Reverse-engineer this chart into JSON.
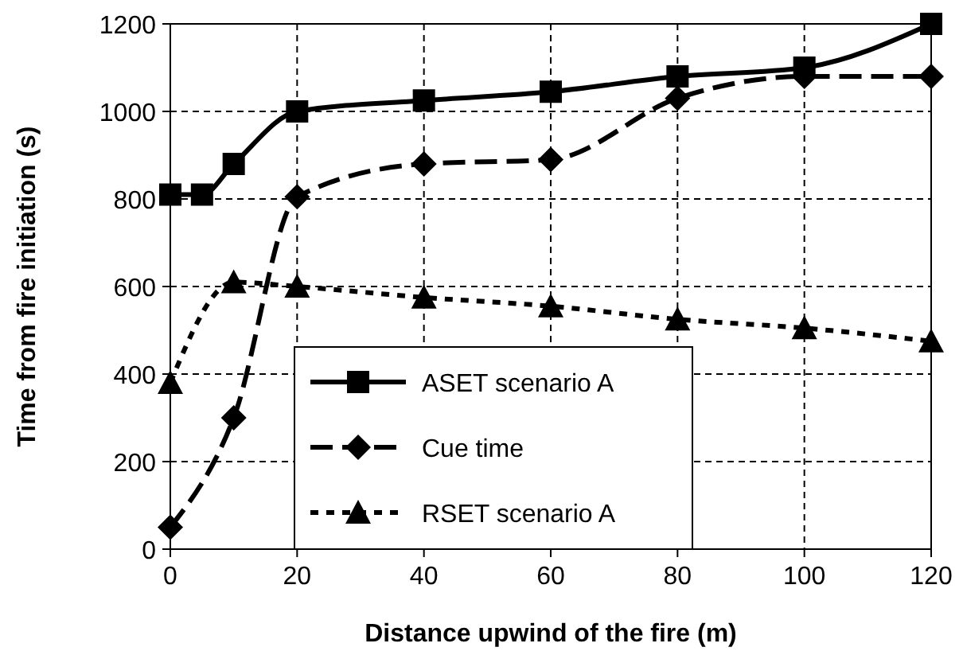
{
  "chart_data": {
    "type": "line",
    "xlabel": "Distance upwind of the fire (m)",
    "ylabel": "Time from fire initiation (s)",
    "xlim": [
      0,
      120
    ],
    "xticks": [
      0,
      20,
      40,
      60,
      80,
      100,
      120
    ],
    "ylim": [
      0,
      1200
    ],
    "yticks": [
      0,
      200,
      400,
      600,
      800,
      1000,
      1200
    ],
    "grid": true,
    "legend": "bottom",
    "series": [
      {
        "name": "ASET scenario A",
        "color": "#000000",
        "marker": "square",
        "line_style": "solid",
        "x": [
          0,
          5,
          10,
          20,
          40,
          60,
          80,
          100,
          120
        ],
        "values": [
          810,
          810,
          880,
          1000,
          1025,
          1045,
          1080,
          1100,
          1200
        ]
      },
      {
        "name": "Cue time",
        "color": "#000000",
        "marker": "diamond",
        "line_style": "dashed",
        "x": [
          0,
          10,
          20,
          40,
          60,
          80,
          100,
          120
        ],
        "values": [
          50,
          300,
          805,
          880,
          890,
          1030,
          1080,
          1080
        ]
      },
      {
        "name": "RSET scenario A",
        "color": "#000000",
        "marker": "triangle",
        "line_style": "dotted",
        "x": [
          0,
          10,
          20,
          40,
          60,
          80,
          100,
          120
        ],
        "values": [
          380,
          610,
          600,
          575,
          555,
          525,
          505,
          475
        ]
      }
    ]
  }
}
